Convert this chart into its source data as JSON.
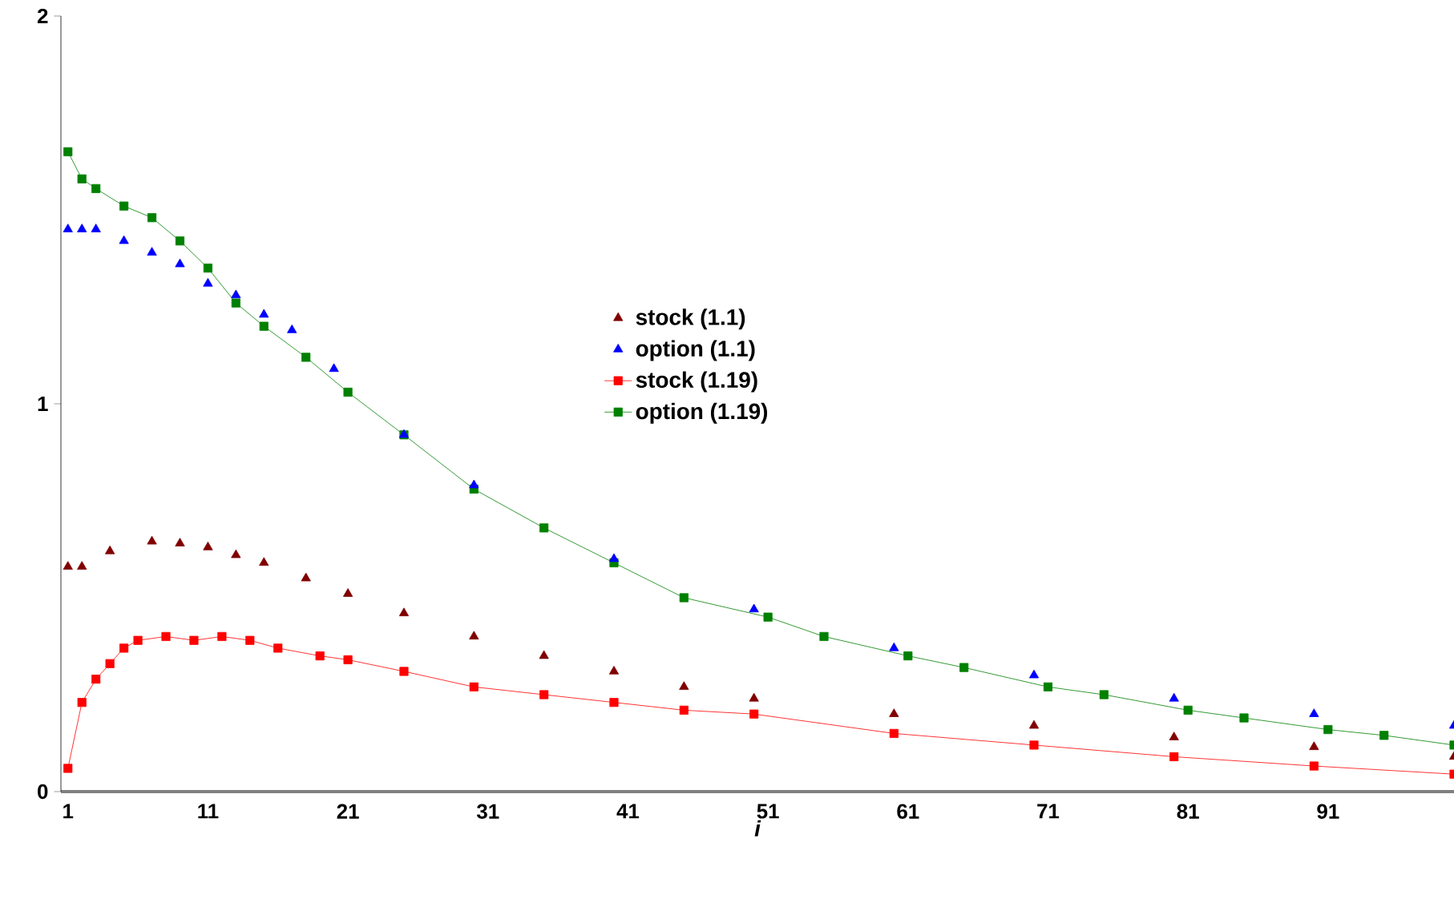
{
  "chart_data": {
    "type": "line",
    "xlabel": "i",
    "xlim": [
      0.5,
      100
    ],
    "ylim": [
      0,
      2
    ],
    "xticks": [
      1,
      11,
      21,
      31,
      41,
      51,
      61,
      71,
      81,
      91
    ],
    "yticks": [
      0,
      1,
      2
    ],
    "legend": "center",
    "grid": false,
    "series": [
      {
        "name": "stock (1.1)",
        "type": "scatter",
        "marker": "triangle",
        "color": "#800000",
        "x": [
          1,
          2,
          4,
          7,
          9,
          11,
          13,
          15,
          18,
          21,
          25,
          30,
          35,
          40,
          45,
          50,
          60,
          70,
          80,
          90,
          100
        ],
        "values": [
          0.58,
          0.58,
          0.62,
          0.645,
          0.64,
          0.63,
          0.61,
          0.59,
          0.55,
          0.51,
          0.46,
          0.4,
          0.35,
          0.31,
          0.27,
          0.24,
          0.2,
          0.17,
          0.14,
          0.115,
          0.09
        ]
      },
      {
        "name": "option (1.1)",
        "type": "scatter",
        "marker": "triangle",
        "color": "#0000ff",
        "x": [
          1,
          2,
          3,
          5,
          7,
          9,
          11,
          13,
          15,
          17,
          20,
          25,
          30,
          40,
          50,
          60,
          70,
          80,
          90,
          100
        ],
        "values": [
          1.45,
          1.45,
          1.45,
          1.42,
          1.39,
          1.36,
          1.31,
          1.28,
          1.23,
          1.19,
          1.09,
          0.92,
          0.79,
          0.6,
          0.47,
          0.37,
          0.3,
          0.24,
          0.2,
          0.17
        ]
      },
      {
        "name": "stock (1.19)",
        "marker": "square",
        "color": "#ff0000",
        "x": [
          1,
          2,
          3,
          4,
          5,
          6,
          8,
          10,
          12,
          14,
          16,
          19,
          21,
          25,
          30,
          35,
          40,
          45,
          50,
          60,
          70,
          80,
          90,
          100
        ],
        "values": [
          0.06,
          0.23,
          0.29,
          0.33,
          0.37,
          0.39,
          0.4,
          0.39,
          0.4,
          0.39,
          0.37,
          0.35,
          0.34,
          0.31,
          0.27,
          0.25,
          0.23,
          0.21,
          0.2,
          0.15,
          0.12,
          0.09,
          0.066,
          0.045
        ]
      },
      {
        "name": "option (1.19)",
        "marker": "square",
        "color": "#008000",
        "x": [
          1,
          2,
          3,
          5,
          7,
          9,
          11,
          13,
          15,
          18,
          21,
          25,
          30,
          35,
          40,
          45,
          51,
          55,
          61,
          65,
          71,
          75,
          81,
          85,
          91,
          95,
          100
        ],
        "values": [
          1.65,
          1.58,
          1.555,
          1.51,
          1.48,
          1.42,
          1.35,
          1.26,
          1.2,
          1.12,
          1.03,
          0.92,
          0.78,
          0.68,
          0.59,
          0.5,
          0.45,
          0.4,
          0.35,
          0.32,
          0.27,
          0.25,
          0.21,
          0.19,
          0.16,
          0.145,
          0.12
        ]
      }
    ]
  }
}
